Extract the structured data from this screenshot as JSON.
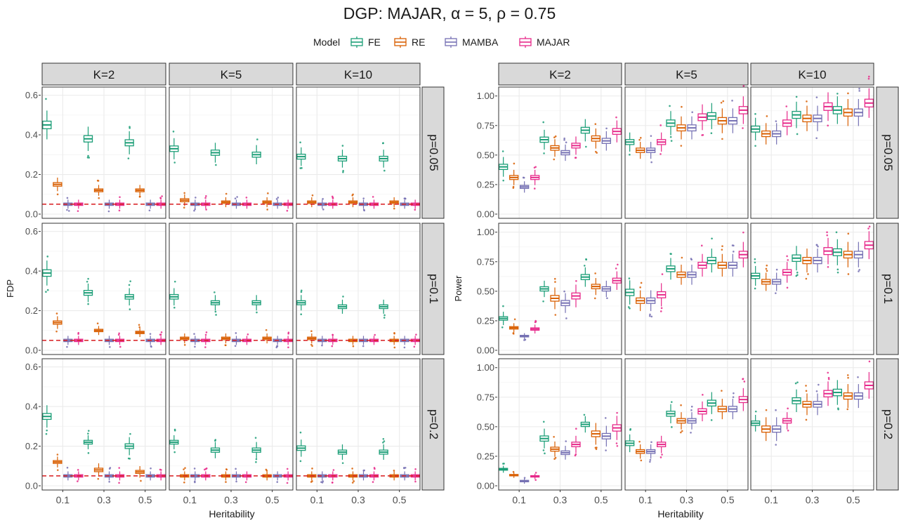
{
  "title": "DGP: MAJAR, α = 5, ρ = 0.75",
  "legend": {
    "title": "Model",
    "position": "top",
    "items": [
      {
        "name": "FE",
        "color": "#1b9e77"
      },
      {
        "name": "RE",
        "color": "#d95f02"
      },
      {
        "name": "MAMBA",
        "color": "#7570b3"
      },
      {
        "name": "MAJAR",
        "color": "#e7298a"
      }
    ]
  },
  "colors": {
    "panel_bg": "#ffffff",
    "strip_bg": "#d9d9d9",
    "grid": "#ebebeb",
    "reference_line": "#d7191c"
  },
  "chart_data": [
    {
      "type": "box",
      "name": "fdp-panel-grid",
      "xlabel": "Heritability",
      "ylabel": "FDP",
      "x_categories": [
        "0.1",
        "0.3",
        "0.5"
      ],
      "ylim": [
        0,
        0.62
      ],
      "yticks": [
        "0.0",
        "0.2",
        "0.4",
        "0.6"
      ],
      "yticks_values": [
        0,
        0.2,
        0.4,
        0.6
      ],
      "reference_line": {
        "y": 0.05,
        "style": "dashed"
      },
      "col_facets": [
        "K=2",
        "K=5",
        "K=10"
      ],
      "row_facets": [
        "p=0.05",
        "p=0.1",
        "p=0.2"
      ],
      "medians": [
        [
          {
            "FE": [
              0.45,
              0.38,
              0.36
            ],
            "RE": [
              0.15,
              0.12,
              0.12
            ],
            "MAMBA": [
              0.05,
              0.05,
              0.05
            ],
            "MAJAR": [
              0.05,
              0.05,
              0.05
            ]
          },
          {
            "FE": [
              0.33,
              0.31,
              0.3
            ],
            "RE": [
              0.07,
              0.06,
              0.06
            ],
            "MAMBA": [
              0.05,
              0.05,
              0.05
            ],
            "MAJAR": [
              0.05,
              0.05,
              0.05
            ]
          },
          {
            "FE": [
              0.29,
              0.28,
              0.28
            ],
            "RE": [
              0.06,
              0.06,
              0.06
            ],
            "MAMBA": [
              0.05,
              0.05,
              0.05
            ],
            "MAJAR": [
              0.05,
              0.05,
              0.05
            ]
          }
        ],
        [
          {
            "FE": [
              0.39,
              0.29,
              0.27
            ],
            "RE": [
              0.14,
              0.1,
              0.09
            ],
            "MAMBA": [
              0.05,
              0.05,
              0.05
            ],
            "MAJAR": [
              0.05,
              0.05,
              0.05
            ]
          },
          {
            "FE": [
              0.27,
              0.24,
              0.24
            ],
            "RE": [
              0.06,
              0.06,
              0.06
            ],
            "MAMBA": [
              0.05,
              0.05,
              0.05
            ],
            "MAJAR": [
              0.05,
              0.05,
              0.05
            ]
          },
          {
            "FE": [
              0.24,
              0.22,
              0.22
            ],
            "RE": [
              0.06,
              0.05,
              0.05
            ],
            "MAMBA": [
              0.05,
              0.05,
              0.05
            ],
            "MAJAR": [
              0.05,
              0.05,
              0.05
            ]
          }
        ],
        [
          {
            "FE": [
              0.35,
              0.22,
              0.2
            ],
            "RE": [
              0.12,
              0.08,
              0.07
            ],
            "MAMBA": [
              0.05,
              0.05,
              0.05
            ],
            "MAJAR": [
              0.05,
              0.05,
              0.05
            ]
          },
          {
            "FE": [
              0.22,
              0.18,
              0.18
            ],
            "RE": [
              0.05,
              0.05,
              0.05
            ],
            "MAMBA": [
              0.05,
              0.05,
              0.05
            ],
            "MAJAR": [
              0.05,
              0.05,
              0.05
            ]
          },
          {
            "FE": [
              0.19,
              0.17,
              0.17
            ],
            "RE": [
              0.05,
              0.05,
              0.05
            ],
            "MAMBA": [
              0.05,
              0.05,
              0.05
            ],
            "MAJAR": [
              0.05,
              0.05,
              0.05
            ]
          }
        ]
      ]
    },
    {
      "type": "box",
      "name": "power-panel-grid",
      "xlabel": "Heritability",
      "ylabel": "Power",
      "x_categories": [
        "0.1",
        "0.3",
        "0.5"
      ],
      "ylim": [
        0,
        1.04
      ],
      "yticks": [
        "0.00",
        "0.25",
        "0.50",
        "0.75",
        "1.00"
      ],
      "yticks_values": [
        0,
        0.25,
        0.5,
        0.75,
        1.0
      ],
      "col_facets": [
        "K=2",
        "K=5",
        "K=10"
      ],
      "row_facets": [
        "p=0.05",
        "p=0.1",
        "p=0.2"
      ],
      "medians": [
        [
          {
            "FE": [
              0.4,
              0.63,
              0.71
            ],
            "RE": [
              0.31,
              0.56,
              0.64
            ],
            "MAMBA": [
              0.23,
              0.52,
              0.62
            ],
            "MAJAR": [
              0.31,
              0.58,
              0.7
            ]
          },
          {
            "FE": [
              0.61,
              0.77,
              0.83
            ],
            "RE": [
              0.54,
              0.73,
              0.79
            ],
            "MAMBA": [
              0.54,
              0.73,
              0.79
            ],
            "MAJAR": [
              0.61,
              0.82,
              0.88
            ]
          },
          {
            "FE": [
              0.72,
              0.84,
              0.88
            ],
            "RE": [
              0.68,
              0.81,
              0.86
            ],
            "MAMBA": [
              0.68,
              0.81,
              0.86
            ],
            "MAJAR": [
              0.77,
              0.91,
              0.94
            ]
          }
        ],
        [
          {
            "FE": [
              0.27,
              0.52,
              0.62
            ],
            "RE": [
              0.19,
              0.44,
              0.54
            ],
            "MAMBA": [
              0.12,
              0.4,
              0.52
            ],
            "MAJAR": [
              0.18,
              0.46,
              0.59
            ]
          },
          {
            "FE": [
              0.49,
              0.69,
              0.76
            ],
            "RE": [
              0.42,
              0.64,
              0.72
            ],
            "MAMBA": [
              0.42,
              0.64,
              0.72
            ],
            "MAJAR": [
              0.47,
              0.72,
              0.81
            ]
          },
          {
            "FE": [
              0.63,
              0.78,
              0.83
            ],
            "RE": [
              0.58,
              0.76,
              0.81
            ],
            "MAMBA": [
              0.58,
              0.76,
              0.81
            ],
            "MAJAR": [
              0.66,
              0.84,
              0.89
            ]
          }
        ],
        [
          {
            "FE": [
              0.14,
              0.4,
              0.52
            ],
            "RE": [
              0.09,
              0.31,
              0.44
            ],
            "MAMBA": [
              0.04,
              0.28,
              0.42
            ],
            "MAJAR": [
              0.08,
              0.35,
              0.49
            ]
          },
          {
            "FE": [
              0.36,
              0.61,
              0.7
            ],
            "RE": [
              0.29,
              0.55,
              0.65
            ],
            "MAMBA": [
              0.29,
              0.55,
              0.65
            ],
            "MAJAR": [
              0.35,
              0.63,
              0.73
            ]
          },
          {
            "FE": [
              0.53,
              0.72,
              0.79
            ],
            "RE": [
              0.48,
              0.69,
              0.76
            ],
            "MAMBA": [
              0.48,
              0.69,
              0.76
            ],
            "MAJAR": [
              0.55,
              0.78,
              0.85
            ]
          }
        ]
      ]
    }
  ]
}
